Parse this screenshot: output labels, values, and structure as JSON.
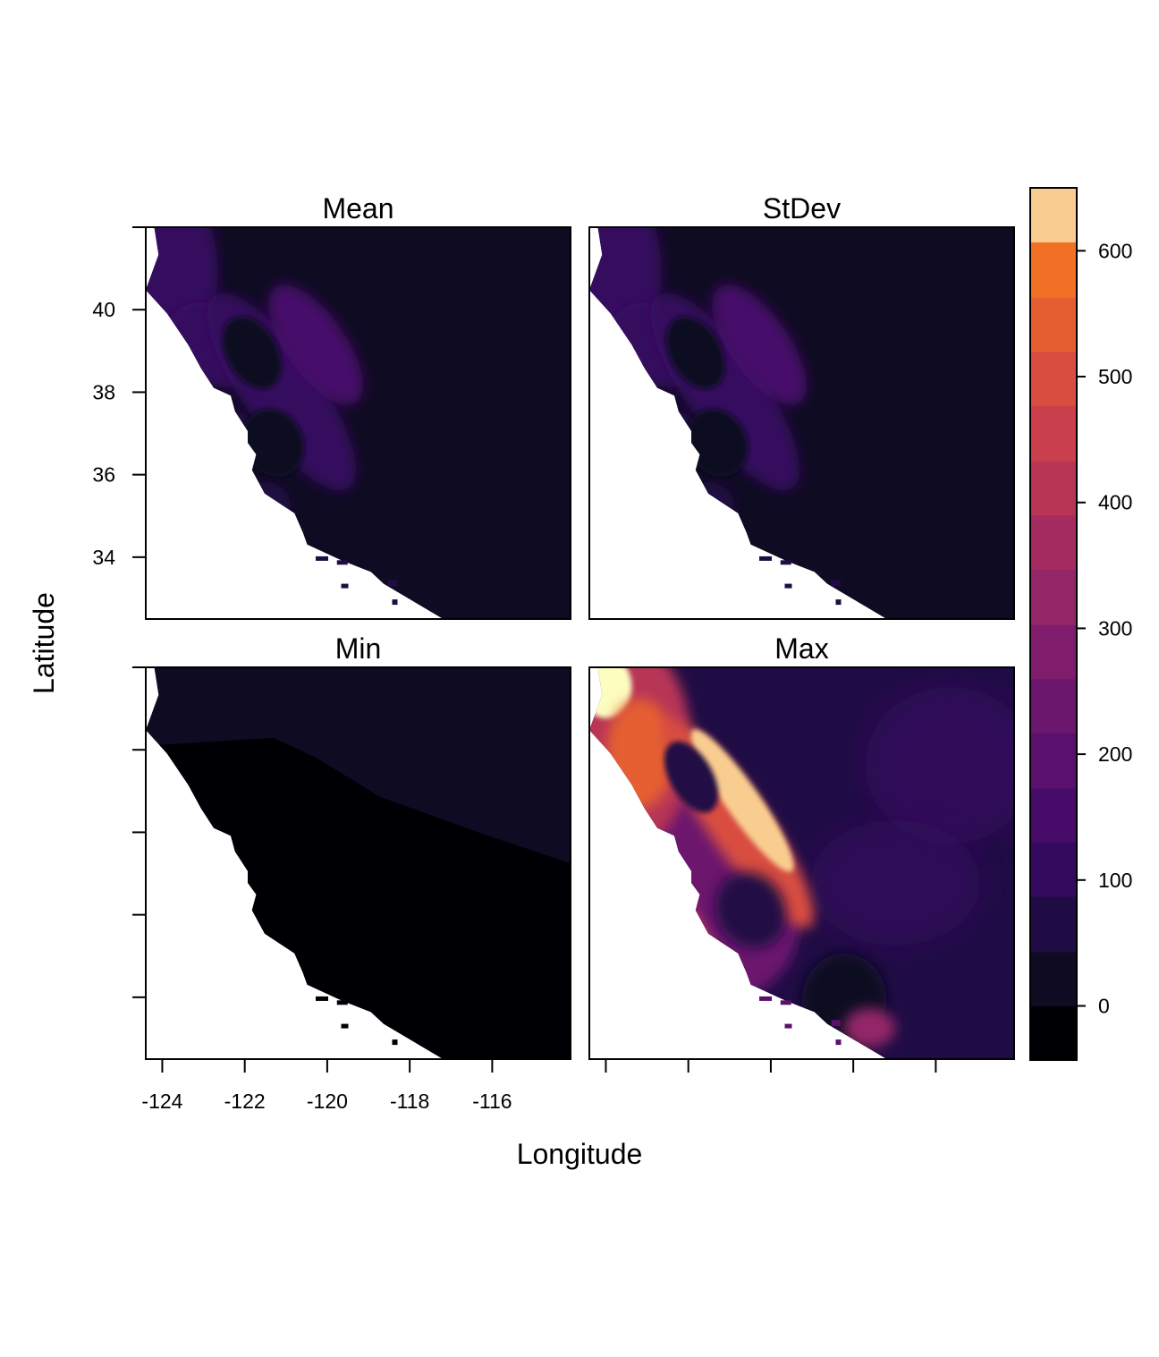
{
  "chart_data": {
    "type": "heatmap",
    "xlabel": "Longitude",
    "ylabel": "Latitude",
    "xlim": [
      -124.4,
      -114.1
    ],
    "ylim": [
      32.5,
      42.0
    ],
    "x_ticks": [
      -124,
      -122,
      -120,
      -118,
      -116
    ],
    "y_ticks": [
      34,
      36,
      38,
      40
    ],
    "panels": [
      {
        "title": "Mean",
        "variant": "mean"
      },
      {
        "title": "StDev",
        "variant": "stdev"
      },
      {
        "title": "Min",
        "variant": "min"
      },
      {
        "title": "Max",
        "variant": "max"
      }
    ],
    "colorbar": {
      "range": [
        -43,
        650
      ],
      "breaks": [
        -43,
        0,
        43,
        87,
        130,
        173,
        217,
        260,
        303,
        347,
        390,
        433,
        477,
        520,
        563,
        607,
        650
      ],
      "ticks": [
        0,
        100,
        200,
        300,
        400,
        500,
        600
      ],
      "colors": [
        "#000004",
        "#0f0b22",
        "#200c45",
        "#340a5f",
        "#470b6a",
        "#5a116e",
        "#6c176e",
        "#7f1d6c",
        "#932667",
        "#a52c60",
        "#b83556",
        "#c93f4b",
        "#d84d3f",
        "#e55e32",
        "#f07026",
        "#f9cd8f",
        "#fcfdbf"
      ]
    }
  }
}
